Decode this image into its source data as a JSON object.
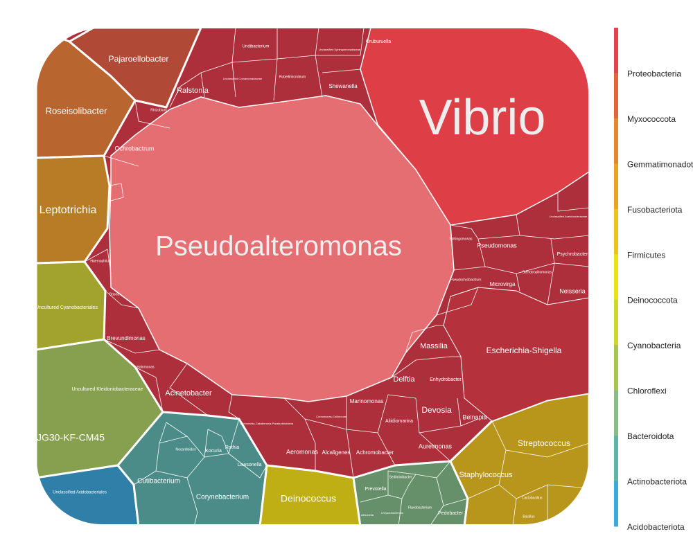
{
  "chart_data": {
    "type": "voronoi-treemap",
    "title": "",
    "legend": {
      "placement": "right",
      "entries": [
        {
          "name": "Proteobacteria",
          "color": "#e0434a"
        },
        {
          "name": "Myxococcota",
          "color": "#e2653b"
        },
        {
          "name": "Gemmatimonadota",
          "color": "#e4862e"
        },
        {
          "name": "Fusobacteriota",
          "color": "#e7a424"
        },
        {
          "name": "Firmicutes",
          "color": "#ecc21c"
        },
        {
          "name": "Deinococcota",
          "color": "#ede20f"
        },
        {
          "name": "Cyanobacteria",
          "color": "#cfd52b"
        },
        {
          "name": "Chloroflexi",
          "color": "#a7c352"
        },
        {
          "name": "Bacteroidota",
          "color": "#86bd82"
        },
        {
          "name": "Actinobacteriota",
          "color": "#60b3a6"
        },
        {
          "name": "Acidobacteriota",
          "color": "#3da7d8"
        }
      ]
    },
    "labels": {
      "vibrio": "Vibrio",
      "pseudoalteromonas": "Pseudoalteromonas",
      "pajaroellobacter": "Pajaroellobacter",
      "roseisolibacter": "Roseisolibacter",
      "leptotrichia": "Leptotrichia",
      "uncultured_cyano": "Uncultured Cyanobacteriales",
      "uncultured_kleb": "Uncultured Kleidoniobacteraceae",
      "jg30": "JG30-KF-CM45",
      "uncultured_acido": "Unclassified Acidobacteriales",
      "cutibacterium": "Cutibacterium",
      "corynebacterium": "Corynebacterium",
      "kocuria": "Kocuria",
      "rothia": "Rothia",
      "lawsonella": "Lawsonella",
      "nocardioides": "Nocardioides",
      "deinococcus": "Deinococcus",
      "prevotella": "Prevotella",
      "sediminibacter": "Sediminibacter",
      "flavobacterium": "Flavobacterium",
      "pedobacter": "Pedobacter",
      "chryseobacterium": "Chryseobacterium",
      "allisonella": "Allisonella",
      "streptococcus": "Streptococcus",
      "staphylococcus": "Staphylococcus",
      "lactobacillus": "Lactobacillus",
      "bacillus": "Bacillus",
      "escherichia": "Escherichia-Shigella",
      "ralstonia": "Ralstonia",
      "shewanella": "Shewanella",
      "uruburuella": "Uruburuella",
      "undibacterium": "Undibacterium",
      "ochrobactrum": "Ochrobactrum",
      "rhizobium": "Rhizobium",
      "pseudomonas": "Pseudomonas",
      "psychrobacter": "Psychrobacter",
      "neisseria": "Neisseria",
      "microvirga": "Microvirga",
      "stenotrophomonas": "Stenotrophomonas",
      "massilia": "Massilia",
      "delftia": "Delftia",
      "enhydrobacter": "Enhydrobacter",
      "devosia": "Devosia",
      "belnapia": "Belnapia",
      "marinomonas": "Marinomonas",
      "aliidiomarina": "Aliidiomarina",
      "aeromonas": "Aeromonas",
      "alcaligenes": "Alcaligenes",
      "achromobacter": "Achromobacter",
      "aureimonas": "Aureimonas",
      "acinetobacter": "Acinetobacter",
      "brevundimonas": "Brevundimonas",
      "haemophilus": "Haemophilus",
      "sphingomonas": "Sphingomonas",
      "pseudochrobactrum": "Pseudochrobactrum",
      "rubellimicrobium": "Rubellimicrobium",
      "unclassified_comamonadaceae": "Unclassified Comamonadaceae",
      "unclassified_sphingomonadaceae": "Unclassified Sphingomonadaceae",
      "unclassified_acetobacteraceae": "Unclassified Acetobacteraceae",
      "escherichia_cab": "Escherichia-Caballeronia-Paraburkholderia",
      "comamonas": "Comamonas-Collimonas",
      "halomonas": "Halomonas",
      "bosea": "Bosea"
    }
  }
}
